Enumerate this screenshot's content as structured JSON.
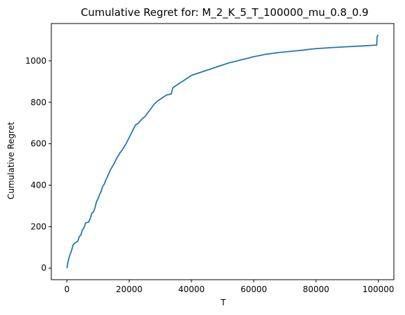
{
  "chart_data": {
    "type": "line",
    "title": "Cumulative Regret for: M_2_K_5_T_100000_mu_0.8_0.9",
    "xlabel": "T",
    "ylabel": "Cumulative Regret",
    "xlim": [
      -5000,
      105000
    ],
    "ylim": [
      -56,
      1180
    ],
    "xticks": [
      0,
      20000,
      40000,
      60000,
      80000,
      100000
    ],
    "xtick_labels": [
      "0",
      "20000",
      "40000",
      "60000",
      "80000",
      "100000"
    ],
    "yticks": [
      0,
      200,
      400,
      600,
      800,
      1000
    ],
    "ytick_labels": [
      "0",
      "200",
      "400",
      "600",
      "800",
      "1000"
    ],
    "grid": false,
    "legend": "none",
    "series": [
      {
        "color": "#1f77b4",
        "x": [
          0,
          500,
          1000,
          1500,
          2000,
          2500,
          3000,
          3500,
          4000,
          4500,
          5000,
          5500,
          6000,
          6500,
          7000,
          7500,
          8000,
          8500,
          9000,
          9500,
          10000,
          10500,
          11000,
          11500,
          12000,
          12500,
          13000,
          14000,
          15000,
          16000,
          17000,
          18000,
          19000,
          20000,
          21000,
          22000,
          23000,
          24000,
          25000,
          26000,
          27000,
          28000,
          29000,
          30000,
          31000,
          32000,
          33500,
          34000,
          35000,
          36000,
          37000,
          38000,
          39000,
          40000,
          42000,
          44000,
          46000,
          48000,
          50000,
          52000,
          54000,
          56000,
          58000,
          60000,
          62000,
          64000,
          66000,
          68000,
          70000,
          72000,
          74000,
          76000,
          78000,
          80000,
          85000,
          90000,
          95000,
          99500,
          99600,
          100000
        ],
        "y": [
          0,
          40,
          65,
          85,
          112,
          120,
          125,
          130,
          152,
          160,
          185,
          195,
          218,
          220,
          222,
          240,
          265,
          270,
          290,
          320,
          335,
          355,
          370,
          395,
          405,
          425,
          440,
          475,
          500,
          530,
          555,
          575,
          600,
          630,
          660,
          690,
          700,
          718,
          730,
          750,
          770,
          790,
          805,
          815,
          825,
          835,
          840,
          870,
          880,
          890,
          900,
          910,
          920,
          930,
          940,
          950,
          960,
          970,
          980,
          990,
          997,
          1005,
          1012,
          1020,
          1026,
          1032,
          1036,
          1040,
          1043,
          1046,
          1049,
          1052,
          1056,
          1059,
          1064,
          1068,
          1072,
          1076,
          1118,
          1125
        ]
      }
    ]
  }
}
